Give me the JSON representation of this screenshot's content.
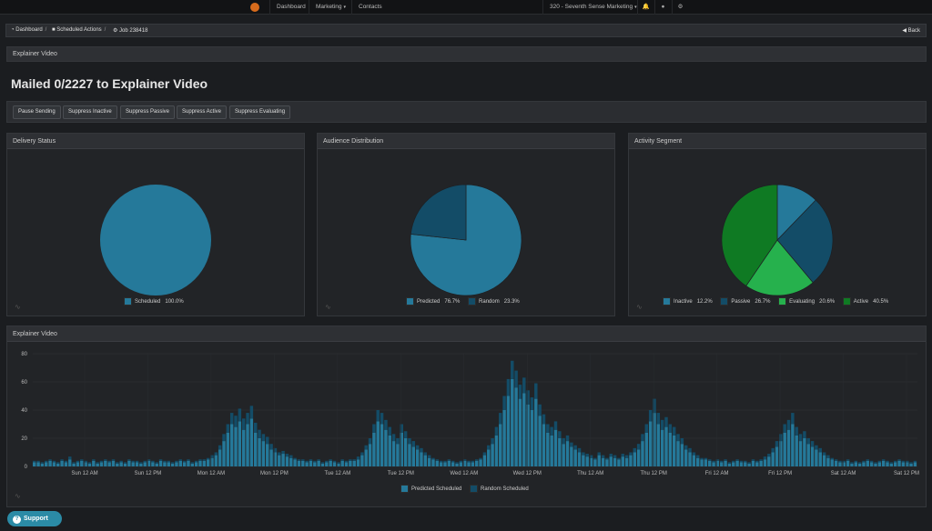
{
  "nav": {
    "dashboard": "Dashboard",
    "marketing": "Marketing",
    "contacts": "Contacts",
    "account": "320 - Seventh Sense Marketing",
    "icons": [
      "bell-icon",
      "user-icon",
      "gear-icon"
    ]
  },
  "breadcrumb": {
    "dashboard": "Dashboard",
    "scheduled": "Scheduled Actions",
    "job": "Job 238418",
    "back": "Back"
  },
  "header": {
    "panel_title": "Explainer Video",
    "page_title": "Mailed 0/2227 to Explainer Video"
  },
  "actions": [
    "Pause Sending",
    "Suppress Inactive",
    "Suppress Passive",
    "Suppress Active",
    "Suppress Evaluating"
  ],
  "colors": {
    "scheduled": "#25799a",
    "predicted": "#25799a",
    "random": "#134c67",
    "inactive": "#25799a",
    "passive": "#134c67",
    "evaluating": "#26b14d",
    "active": "#0f7a23",
    "support": "#2b8ba6"
  },
  "delivery": {
    "title": "Delivery Status",
    "legend": [
      {
        "label": "Scheduled",
        "pct": "100.0%"
      }
    ]
  },
  "audience": {
    "title": "Audience Distribution",
    "legend": [
      {
        "label": "Predicted",
        "pct": "76.7%"
      },
      {
        "label": "Random",
        "pct": "23.3%"
      }
    ]
  },
  "activity": {
    "title": "Activity Segment",
    "legend": [
      {
        "label": "Inactive",
        "pct": "12.2%"
      },
      {
        "label": "Passive",
        "pct": "26.7%"
      },
      {
        "label": "Evaluating",
        "pct": "20.6%"
      },
      {
        "label": "Active",
        "pct": "40.5%"
      }
    ]
  },
  "timeline": {
    "title": "Explainer Video",
    "legend": [
      "Predicted Scheduled",
      "Random Scheduled"
    ]
  },
  "support": "Support",
  "chart_data": [
    {
      "type": "pie",
      "title": "Delivery Status",
      "labels": [
        "Scheduled"
      ],
      "values": [
        100.0
      ]
    },
    {
      "type": "pie",
      "title": "Audience Distribution",
      "labels": [
        "Predicted",
        "Random"
      ],
      "values": [
        76.7,
        23.3
      ]
    },
    {
      "type": "pie",
      "title": "Activity Segment",
      "labels": [
        "Inactive",
        "Passive",
        "Evaluating",
        "Active"
      ],
      "values": [
        12.2,
        26.7,
        20.6,
        40.5
      ]
    },
    {
      "type": "bar",
      "stacked": true,
      "title": "Explainer Video",
      "ylim": [
        0,
        80
      ],
      "yticks": [
        0,
        20,
        40,
        60,
        80
      ],
      "xticks": [
        "Sun 12 AM",
        "Sun 12 PM",
        "Mon 12 AM",
        "Mon 12 PM",
        "Tue 12 AM",
        "Tue 12 PM",
        "Wed 12 AM",
        "Wed 12 PM",
        "Thu 12 AM",
        "Thu 12 PM",
        "Fri 12 AM",
        "Fri 12 PM",
        "Sat 12 AM",
        "Sat 12 PM"
      ],
      "series": [
        {
          "name": "Predicted Scheduled",
          "values": [
            3,
            3,
            2,
            3,
            4,
            3,
            2,
            4,
            3,
            5,
            2,
            3,
            4,
            3,
            2,
            4,
            2,
            3,
            4,
            3,
            4,
            2,
            3,
            2,
            4,
            3,
            3,
            2,
            3,
            4,
            3,
            2,
            4,
            3,
            3,
            2,
            3,
            4,
            3,
            4,
            2,
            3,
            4,
            4,
            5,
            6,
            8,
            12,
            18,
            24,
            30,
            28,
            32,
            26,
            30,
            34,
            24,
            20,
            18,
            16,
            12,
            10,
            8,
            9,
            7,
            6,
            5,
            4,
            4,
            3,
            4,
            3,
            4,
            2,
            3,
            4,
            3,
            2,
            4,
            3,
            4,
            4,
            5,
            8,
            12,
            16,
            24,
            32,
            30,
            26,
            22,
            18,
            16,
            24,
            20,
            16,
            14,
            12,
            10,
            8,
            6,
            5,
            4,
            3,
            3,
            4,
            3,
            2,
            3,
            4,
            3,
            3,
            4,
            5,
            8,
            12,
            16,
            22,
            30,
            40,
            50,
            62,
            56,
            48,
            52,
            44,
            40,
            48,
            36,
            30,
            24,
            22,
            26,
            20,
            16,
            18,
            14,
            12,
            10,
            8,
            7,
            6,
            5,
            8,
            6,
            5,
            7,
            6,
            5,
            7,
            6,
            8,
            10,
            12,
            18,
            24,
            32,
            38,
            30,
            26,
            28,
            24,
            22,
            18,
            16,
            12,
            10,
            8,
            6,
            5,
            5,
            4,
            3,
            4,
            3,
            4,
            2,
            3,
            4,
            3,
            3,
            2,
            4,
            3,
            4,
            5,
            7,
            10,
            14,
            18,
            24,
            26,
            30,
            22,
            18,
            20,
            16,
            14,
            12,
            10,
            8,
            6,
            5,
            4,
            3,
            3,
            4,
            2,
            3,
            2,
            3,
            4,
            3,
            2,
            3,
            4,
            3,
            2,
            3,
            4,
            3,
            3,
            2,
            3
          ]
        },
        {
          "name": "Random Scheduled",
          "values": [
            1,
            1,
            1,
            1,
            1,
            1,
            1,
            1,
            1,
            2,
            1,
            1,
            1,
            1,
            1,
            1,
            1,
            1,
            1,
            1,
            1,
            1,
            1,
            1,
            1,
            1,
            1,
            1,
            1,
            1,
            1,
            1,
            1,
            1,
            1,
            1,
            1,
            1,
            1,
            1,
            1,
            1,
            1,
            1,
            1,
            2,
            2,
            3,
            5,
            6,
            8,
            8,
            9,
            8,
            8,
            9,
            7,
            6,
            5,
            5,
            4,
            3,
            2,
            2,
            2,
            2,
            1,
            1,
            1,
            1,
            1,
            1,
            1,
            1,
            1,
            1,
            1,
            1,
            1,
            1,
            1,
            1,
            2,
            2,
            3,
            4,
            6,
            8,
            8,
            7,
            6,
            5,
            4,
            6,
            5,
            4,
            4,
            3,
            3,
            2,
            2,
            1,
            1,
            1,
            1,
            1,
            1,
            1,
            1,
            1,
            1,
            1,
            1,
            1,
            2,
            3,
            4,
            6,
            8,
            10,
            12,
            13,
            12,
            10,
            11,
            10,
            9,
            11,
            8,
            7,
            6,
            6,
            6,
            5,
            4,
            4,
            3,
            3,
            3,
            2,
            2,
            2,
            1,
            2,
            2,
            1,
            2,
            2,
            1,
            2,
            2,
            2,
            3,
            4,
            5,
            6,
            8,
            10,
            8,
            7,
            7,
            6,
            6,
            5,
            4,
            3,
            3,
            2,
            2,
            1,
            1,
            1,
            1,
            1,
            1,
            1,
            1,
            1,
            1,
            1,
            1,
            1,
            1,
            1,
            1,
            2,
            2,
            3,
            4,
            5,
            6,
            7,
            8,
            6,
            5,
            5,
            4,
            4,
            3,
            3,
            2,
            2,
            1,
            1,
            1,
            1,
            1,
            1,
            1,
            1,
            1,
            1,
            1,
            1,
            1,
            1,
            1,
            1,
            1,
            1,
            1,
            1,
            1,
            1
          ]
        }
      ]
    }
  ]
}
